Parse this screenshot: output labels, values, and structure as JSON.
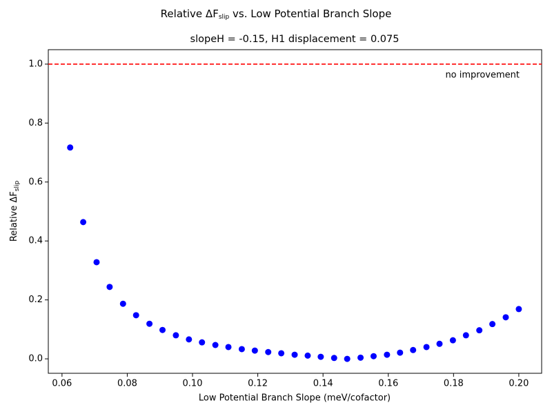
{
  "chart_data": {
    "type": "scatter",
    "title": {
      "main": "Relative ΔF",
      "sub": "slip",
      "rest": " vs. Low Potential Branch Slope"
    },
    "subtitle": "slopeH = -0.15, H1 displacement = 0.075",
    "xlabel": "Low Potential Branch Slope (meV/cofactor)",
    "ylabel": {
      "main": "Relative ΔF",
      "sub": "slip"
    },
    "color": "blue",
    "x": [
      0.0625,
      0.0665,
      0.0706,
      0.0746,
      0.0787,
      0.0827,
      0.0868,
      0.0908,
      0.0949,
      0.0989,
      0.1029,
      0.107,
      0.111,
      0.1151,
      0.1191,
      0.1232,
      0.1272,
      0.1313,
      0.1353,
      0.1393,
      0.1434,
      0.1474,
      0.1515,
      0.1555,
      0.1596,
      0.1636,
      0.1676,
      0.1717,
      0.1757,
      0.1798,
      0.1838,
      0.1879,
      0.1919,
      0.196,
      0.2
    ],
    "values": [
      0.717,
      0.464,
      0.328,
      0.244,
      0.187,
      0.148,
      0.119,
      0.098,
      0.08,
      0.066,
      0.056,
      0.047,
      0.04,
      0.033,
      0.028,
      0.023,
      0.019,
      0.014,
      0.011,
      0.007,
      0.003,
      0.0,
      0.004,
      0.009,
      0.014,
      0.021,
      0.03,
      0.04,
      0.051,
      0.063,
      0.08,
      0.097,
      0.118,
      0.141,
      0.169
    ],
    "xlim": [
      0.0558,
      0.207
    ],
    "ylim": [
      -0.049,
      1.049
    ],
    "xticks": [
      0.06,
      0.08,
      {
        "value": 0.1,
        "label": "0.10"
      },
      0.12,
      0.14,
      0.16,
      0.18,
      {
        "value": 0.2,
        "label": "0.20"
      }
    ],
    "yticks": [
      {
        "value": 0,
        "label": "0.0"
      },
      0.2,
      0.4,
      0.6,
      0.8,
      {
        "value": 1,
        "label": "1.0"
      }
    ],
    "hline": {
      "value": 1,
      "color": "red",
      "label": "no improvement"
    },
    "grid": false
  }
}
